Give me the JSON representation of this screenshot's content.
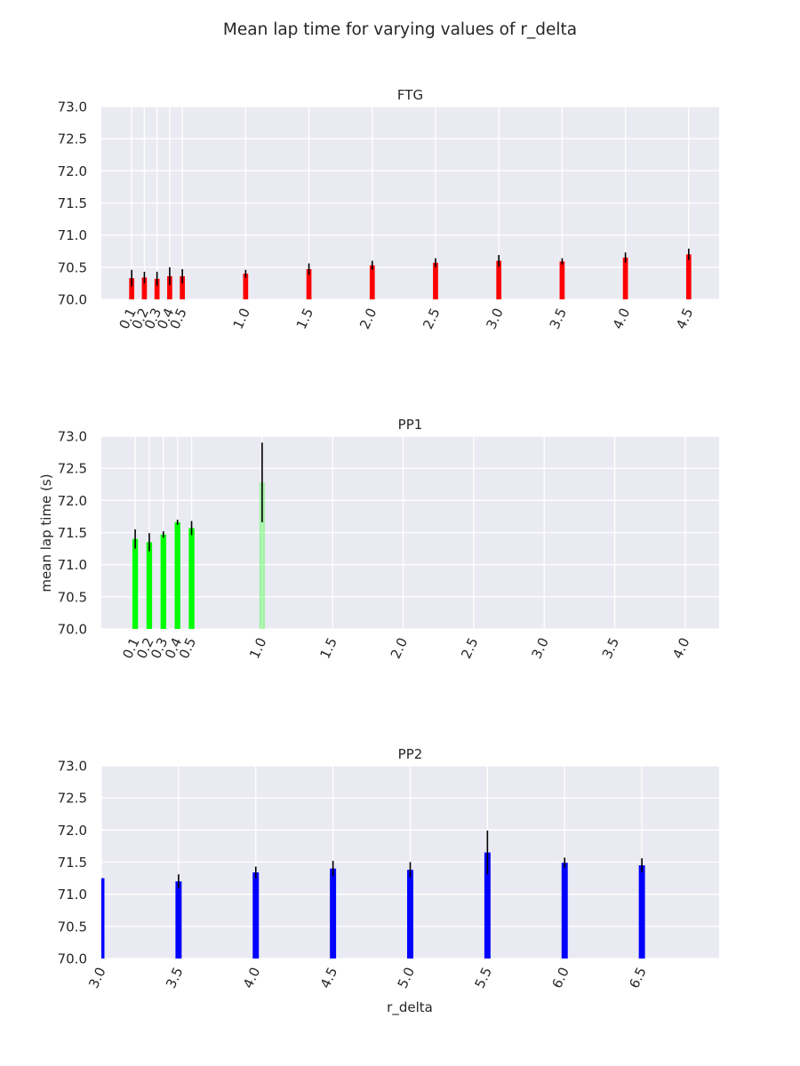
{
  "figure": {
    "title": "Mean lap time for varying values of r_delta",
    "xlabel": "r_delta",
    "ylabel": "mean lap time (s)"
  },
  "chart_data": [
    {
      "type": "bar",
      "title": "FTG",
      "color": "#ff0000",
      "ylim": [
        70.0,
        73.0
      ],
      "yticks": [
        "70.0",
        "70.5",
        "71.0",
        "71.5",
        "72.0",
        "72.5",
        "73.0"
      ],
      "xlim": [
        -0.14,
        4.74
      ],
      "xticks": [
        "0.1",
        "0.2",
        "0.3",
        "0.4",
        "0.5",
        "1.0",
        "1.5",
        "2.0",
        "2.5",
        "3.0",
        "3.5",
        "4.0",
        "4.5"
      ],
      "bar_width": 0.04,
      "grid": true,
      "x": [
        0.1,
        0.2,
        0.3,
        0.4,
        0.5,
        1.0,
        1.5,
        2.0,
        2.5,
        3.0,
        3.5,
        4.0,
        4.5
      ],
      "values": [
        70.33,
        70.34,
        70.32,
        70.36,
        70.36,
        70.4,
        70.47,
        70.53,
        70.57,
        70.6,
        70.59,
        70.65,
        70.7
      ],
      "errors": [
        0.13,
        0.09,
        0.11,
        0.14,
        0.11,
        0.06,
        0.09,
        0.07,
        0.07,
        0.09,
        0.05,
        0.08,
        0.09
      ]
    },
    {
      "type": "bar",
      "title": "PP1",
      "color": "#00ff00",
      "ylim": [
        70.0,
        73.0
      ],
      "yticks": [
        "70.0",
        "70.5",
        "71.0",
        "71.5",
        "72.0",
        "72.5",
        "73.0"
      ],
      "xlim": [
        -0.14,
        4.24
      ],
      "xticks": [
        "0.1",
        "0.2",
        "0.3",
        "0.4",
        "0.5",
        "1.0",
        "1.5",
        "2.0",
        "2.5",
        "3.0",
        "3.5",
        "4.0"
      ],
      "bar_width": 0.04,
      "grid": true,
      "x": [
        0.1,
        0.2,
        0.3,
        0.4,
        0.5,
        1.0
      ],
      "values": [
        71.4,
        71.35,
        71.47,
        71.66,
        71.57,
        72.28
      ],
      "errors": [
        0.15,
        0.14,
        0.05,
        0.04,
        0.11,
        0.62
      ],
      "bar_opacity": [
        1,
        1,
        1,
        1,
        1,
        0.3
      ]
    },
    {
      "type": "bar",
      "title": "PP2",
      "color": "#0000ff",
      "ylim": [
        70.0,
        73.0
      ],
      "yticks": [
        "70.0",
        "70.5",
        "71.0",
        "71.5",
        "72.0",
        "72.5",
        "73.0"
      ],
      "xlim": [
        3.0,
        7.0
      ],
      "xticks": [
        "3.0",
        "3.5",
        "4.0",
        "4.5",
        "5.0",
        "5.5",
        "6.0",
        "6.5"
      ],
      "bar_width": 0.04,
      "grid": true,
      "x": [
        3.0,
        3.5,
        4.0,
        4.5,
        5.0,
        5.5,
        6.0,
        6.5
      ],
      "values": [
        71.25,
        71.2,
        71.34,
        71.4,
        71.38,
        71.65,
        71.49,
        71.45
      ],
      "errors": [
        0.0,
        0.11,
        0.09,
        0.12,
        0.12,
        0.34,
        0.08,
        0.11
      ]
    }
  ]
}
